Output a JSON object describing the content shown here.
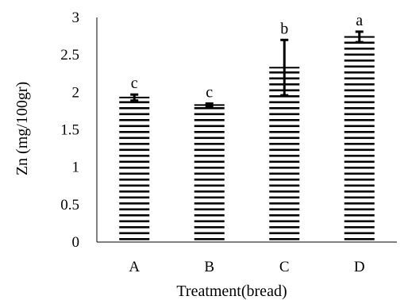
{
  "chart_data": {
    "type": "bar",
    "title": "",
    "xlabel": "Treatment(bread)",
    "ylabel": "Zn (mg/100gr)",
    "ylim": [
      0,
      3
    ],
    "yticks": [
      "0",
      "0.5",
      "1",
      "1.5",
      "2",
      "2.5",
      "3"
    ],
    "categories": [
      "A",
      "B",
      "C",
      "D"
    ],
    "values": [
      1.93,
      1.83,
      2.33,
      2.74
    ],
    "errors": [
      0.04,
      0.02,
      0.37,
      0.07
    ],
    "significance_letters": [
      "c",
      "c",
      "b",
      "a"
    ],
    "grid": false,
    "legend": "none",
    "bar_fill": "horizontal-stripes",
    "colors": {
      "bar_stripe": "#000000",
      "axis": "#000000",
      "background": "#ffffff"
    }
  }
}
